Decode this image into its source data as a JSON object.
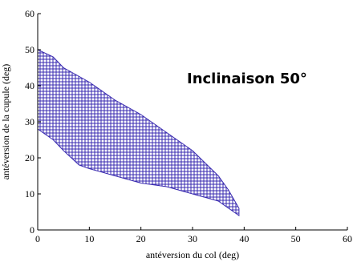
{
  "chart_data": {
    "type": "area",
    "title": "",
    "annotation": "Inclinaison 50°",
    "xlabel": "antéversion du col (deg)",
    "ylabel": "antéversion de la cupule (deg)",
    "xlim": [
      0,
      60
    ],
    "ylim": [
      0,
      60
    ],
    "xticks": [
      0,
      10,
      20,
      30,
      40,
      50,
      60
    ],
    "yticks": [
      0,
      10,
      20,
      30,
      40,
      50,
      60
    ],
    "grid": false,
    "fill_color": "#3a2bb0",
    "fill_pattern": "dense crosshatch (+ markers)",
    "region": {
      "upper": [
        [
          0,
          50
        ],
        [
          3,
          48
        ],
        [
          5,
          45
        ],
        [
          10,
          41
        ],
        [
          15,
          36
        ],
        [
          20,
          32
        ],
        [
          25,
          27
        ],
        [
          30,
          22
        ],
        [
          35,
          15
        ],
        [
          37,
          11
        ],
        [
          39,
          6
        ]
      ],
      "lower": [
        [
          0,
          28
        ],
        [
          3,
          25
        ],
        [
          5,
          22
        ],
        [
          8,
          18
        ],
        [
          10,
          17
        ],
        [
          15,
          15
        ],
        [
          20,
          13
        ],
        [
          25,
          12
        ],
        [
          30,
          10
        ],
        [
          35,
          8
        ],
        [
          39,
          4
        ]
      ]
    }
  }
}
